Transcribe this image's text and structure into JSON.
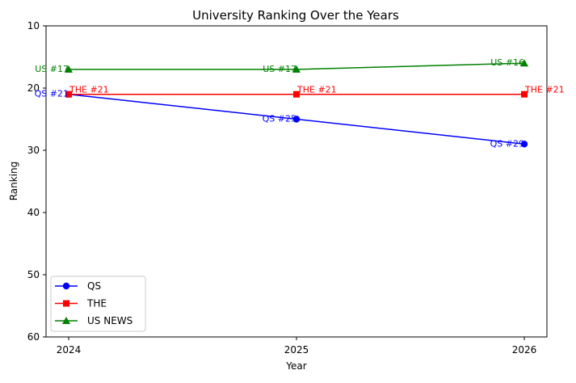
{
  "chart_data": {
    "type": "line",
    "title": "University Ranking Over the Years",
    "xlabel": "Year",
    "ylabel": "Ranking",
    "x": [
      "2024",
      "2025",
      "2026"
    ],
    "ylim": [
      60,
      10
    ],
    "y_inverted": true,
    "yticks": [
      "10",
      "20",
      "30",
      "40",
      "50",
      "60"
    ],
    "grid": false,
    "legend_position": "lower-left",
    "series": [
      {
        "name": "QS",
        "marker": "circle",
        "color": "#0000ff",
        "values": [
          21,
          25,
          29
        ],
        "labels": [
          "QS #21",
          "QS #25",
          "QS #29"
        ]
      },
      {
        "name": "THE",
        "marker": "square",
        "color": "#ff0000",
        "values": [
          21,
          21,
          21
        ],
        "labels": [
          "THE #21",
          "THE #21",
          "THE #21"
        ]
      },
      {
        "name": "US NEWS",
        "marker": "triangle",
        "color": "#008000",
        "values": [
          17,
          17,
          16
        ],
        "labels": [
          "US #17",
          "US #17",
          "US #16"
        ]
      }
    ]
  }
}
